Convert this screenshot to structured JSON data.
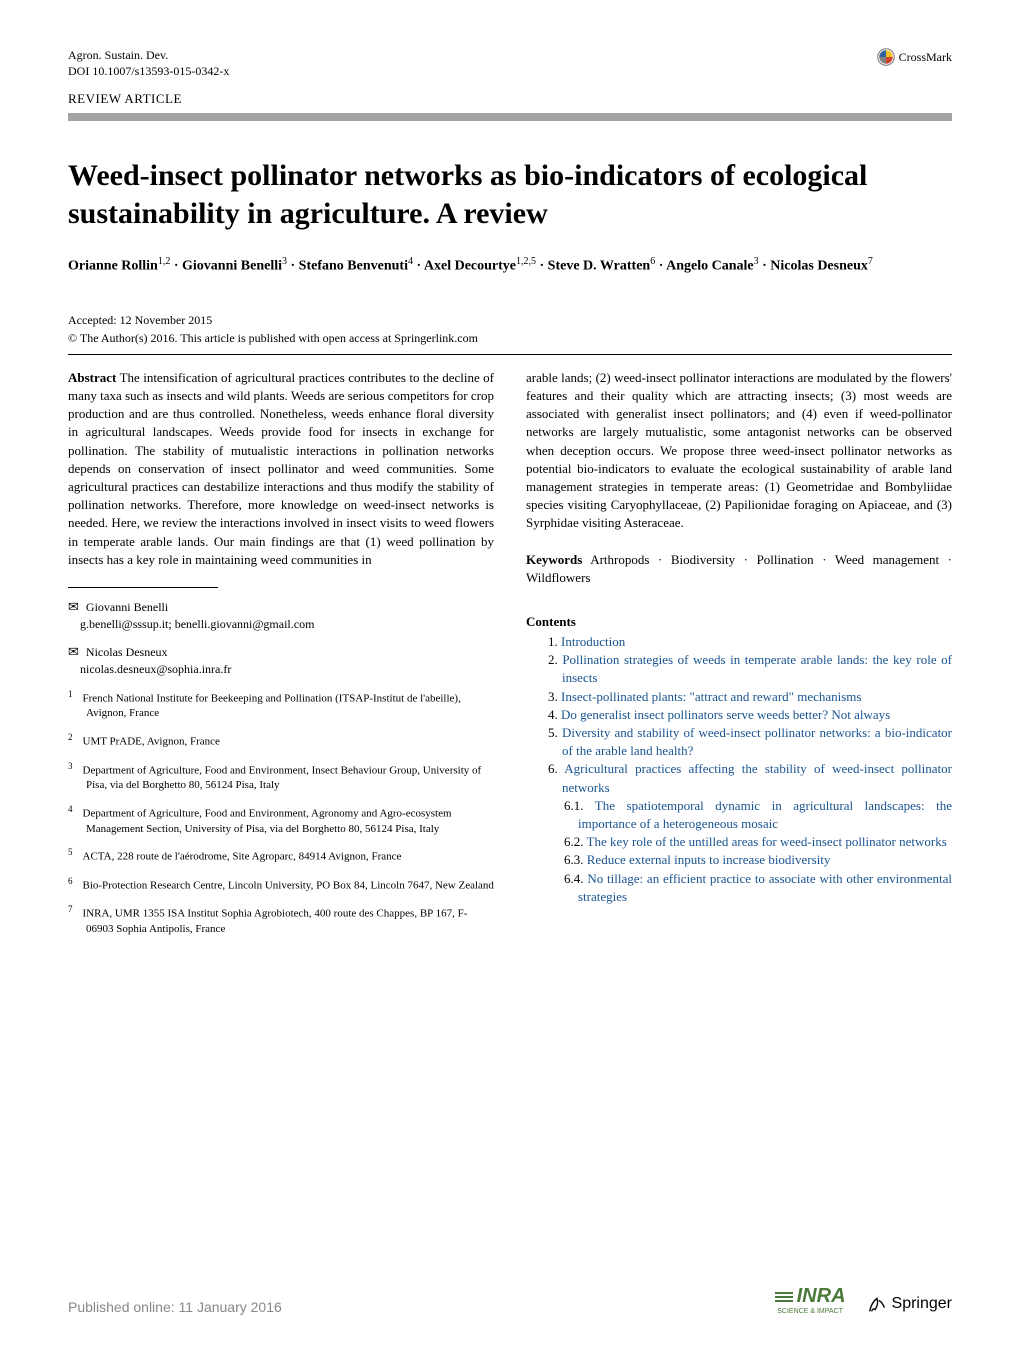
{
  "journal": {
    "name": "Agron. Sustain. Dev.",
    "doi": "DOI 10.1007/s13593-015-0342-x"
  },
  "crossmark_label": "CrossMark",
  "article_type": "REVIEW ARTICLE",
  "title": "Weed-insect pollinator networks as bio-indicators of ecological sustainability in agriculture. A review",
  "authors_html": "Orianne Rollin<sup>1,2</sup> · Giovanni Benelli<sup>3</sup> · Stefano Benvenuti<sup>4</sup> · Axel Decourtye<sup>1,2,5</sup> · Steve D. Wratten<sup>6</sup> · Angelo Canale<sup>3</sup> · Nicolas Desneux<sup>7</sup>",
  "accepted": "Accepted: 12 November 2015",
  "copyright": "© The Author(s) 2016. This article is published with open access at Springerlink.com",
  "abstract": {
    "label": "Abstract",
    "left": "The intensification of agricultural practices contributes to the decline of many taxa such as insects and wild plants. Weeds are serious competitors for crop production and are thus controlled. Nonetheless, weeds enhance floral diversity in agricultural landscapes. Weeds provide food for insects in exchange for pollination. The stability of mutualistic interactions in pollination networks depends on conservation of insect pollinator and weed communities. Some agricultural practices can destabilize interactions and thus modify the stability of pollination networks. Therefore, more knowledge on weed-insect networks is needed. Here, we review the interactions involved in insect visits to weed flowers in temperate arable lands. Our main findings are that (1) weed pollination by insects has a key role in maintaining weed communities in",
    "right": "arable lands; (2) weed-insect pollinator interactions are modulated by the flowers' features and their quality which are attracting insects; (3) most weeds are associated with generalist insect pollinators; and (4) even if weed-pollinator networks are largely mutualistic, some antagonist networks can be observed when deception occurs. We propose three weed-insect pollinator networks as potential bio-indicators to evaluate the ecological sustainability of arable land management strategies in temperate areas: (1) Geometridae and Bombyliidae species visiting Caryophyllaceae, (2) Papilionidae foraging on Apiaceae, and (3) Syrphidae visiting Asteraceae."
  },
  "keywords": {
    "label": "Keywords",
    "text": "Arthropods · Biodiversity · Pollination · Weed management · Wildflowers"
  },
  "contents": {
    "label": "Contents",
    "items": [
      {
        "num": "1.",
        "text": "Introduction",
        "link": true
      },
      {
        "num": "2.",
        "text": "Pollination strategies of weeds in temperate arable lands: the key role of insects",
        "link": true
      },
      {
        "num": "3.",
        "text": "Insect-pollinated plants: \"attract and reward\" mechanisms",
        "link": true
      },
      {
        "num": "4.",
        "text": "Do generalist insect pollinators serve weeds better? Not always",
        "link": true
      },
      {
        "num": "5.",
        "text": "Diversity and stability of weed-insect pollinator networks: a bio-indicator of the arable land health?",
        "link": true
      },
      {
        "num": "6.",
        "text": "Agricultural practices affecting the stability of weed-insect pollinator networks",
        "link": true
      },
      {
        "num": "6.1.",
        "text": "The spatiotemporal dynamic in agricultural landscapes: the importance of a heterogeneous mosaic",
        "link": true,
        "nested": true
      },
      {
        "num": "6.2.",
        "text": "The key role of the untilled areas for weed-insect pollinator networks",
        "link": true,
        "nested": true
      },
      {
        "num": "6.3.",
        "text": "Reduce external inputs to increase biodiversity",
        "link": true,
        "nested": true
      },
      {
        "num": "6.4.",
        "text": "No tillage: an efficient practice to associate with other environmental strategies",
        "link": true,
        "nested": true
      }
    ]
  },
  "corresponding": [
    {
      "name": "Giovanni Benelli",
      "emails": "g.benelli@sssup.it; benelli.giovanni@gmail.com"
    },
    {
      "name": "Nicolas Desneux",
      "emails": "nicolas.desneux@sophia.inra.fr"
    }
  ],
  "affiliations": [
    {
      "num": "1",
      "text": "French National Institute for Beekeeping and Pollination (ITSAP-Institut de l'abeille), Avignon, France"
    },
    {
      "num": "2",
      "text": "UMT PrADE, Avignon, France"
    },
    {
      "num": "3",
      "text": "Department of Agriculture, Food and Environment, Insect Behaviour Group, University of Pisa, via del Borghetto 80, 56124 Pisa, Italy"
    },
    {
      "num": "4",
      "text": "Department of Agriculture, Food and Environment, Agronomy and Agro-ecosystem Management Section, University of Pisa, via del Borghetto 80, 56124 Pisa, Italy"
    },
    {
      "num": "5",
      "text": "ACTA, 228 route de l'aérodrome, Site Agroparc, 84914 Avignon, France"
    },
    {
      "num": "6",
      "text": "Bio-Protection Research Centre, Lincoln University, PO Box 84, Lincoln 7647, New Zealand"
    },
    {
      "num": "7",
      "text": "INRA, UMR 1355 ISA Institut Sophia Agrobiotech, 400 route des Chappes, BP 167, F-06903 Sophia Antipolis, France"
    }
  ],
  "footer": {
    "published": "Published online: 11 January 2016",
    "inra": "INRA",
    "inra_sub": "SCIENCE & IMPACT",
    "springer": "Springer"
  },
  "colors": {
    "text": "#000000",
    "background": "#ffffff",
    "review_bar": "#a3a3a3",
    "link": "#1a5490",
    "pub_date": "#888888",
    "inra": "#4a7a3a",
    "crossmark_yellow": "#f0c020",
    "crossmark_red": "#d04030",
    "crossmark_blue": "#3060a0",
    "crossmark_gray": "#808080"
  }
}
